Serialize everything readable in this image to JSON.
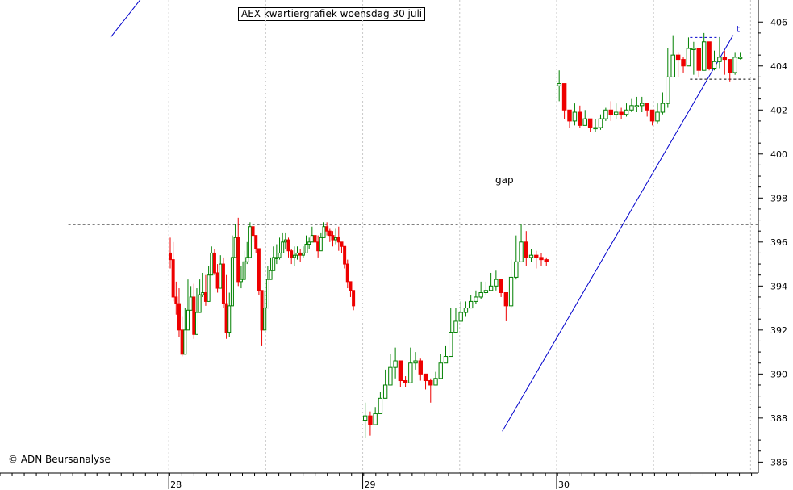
{
  "chart_data": {
    "type": "candlestick",
    "title": "AEX kwartiergrafiek woensdag 30 juli",
    "source": "© ADN Beursanalyse",
    "ylim": [
      385.5,
      407
    ],
    "y_ticks": [
      386,
      388,
      390,
      392,
      394,
      396,
      398,
      400,
      402,
      404,
      406
    ],
    "x_ticks": [
      "28",
      "29",
      "30"
    ],
    "grid": "vertical-dotted",
    "annotations": {
      "gap_label": "gap",
      "trend_label": "t"
    },
    "colors": {
      "up": "#008000",
      "down": "#ee0000",
      "trendline": "#0000cc",
      "grid": "#c8c8c8"
    },
    "levels": [
      {
        "y": 396.8,
        "x_from": 0.09,
        "x_to": 1.0
      },
      {
        "y": 401.0,
        "x_from": 0.76,
        "x_to": 1.0
      },
      {
        "y": 405.3,
        "x_from": 0.91,
        "x_to": 0.95
      },
      {
        "y": 403.4,
        "x_from": 0.91,
        "x_to": 1.0
      }
    ],
    "trendlines": [
      {
        "from": [
          1.72,
          387.4
        ],
        "to": [
          2.91,
          405.4
        ]
      },
      {
        "from": [
          -0.3,
          405.3
        ],
        "to": [
          -0.13,
          407.2
        ]
      }
    ],
    "sessions": [
      {
        "start": 0,
        "end": 0.96,
        "close": [
          395.2,
          393.5,
          393.2,
          392.0,
          390.9,
          392.0,
          392.9,
          393.5,
          391.8,
          392.8,
          393.6,
          393.7,
          393.3,
          394.5,
          395.5,
          394.6,
          393.9,
          395.0,
          393.2,
          391.9,
          393.1,
          395.3,
          396.2,
          394.2,
          394.3,
          395.1,
          395.3,
          396.7,
          396.3,
          395.7,
          393.8,
          392.0,
          393.0,
          394.3,
          394.7,
          395.3,
          395.3,
          395.5,
          396.0,
          396.1,
          395.6,
          395.3,
          395.4,
          395.5,
          395.4,
          395.5,
          395.9,
          396.0,
          396.3,
          396.0,
          395.6,
          396.2,
          396.7,
          396.5,
          396.3,
          396.1,
          396.2,
          396.0,
          395.8,
          395.0,
          394.2,
          393.8,
          393.1
        ],
        "high": [
          396.2,
          396.0,
          394.2,
          393.9,
          392.6,
          393.0,
          394.3,
          394.0,
          394.1,
          393.9,
          394.3,
          394.6,
          394.5,
          394.9,
          395.8,
          395.7,
          395.0,
          395.4,
          395.3,
          394.5,
          393.7,
          396.3,
          396.8,
          397.1,
          394.9,
          395.6,
          396.0,
          396.9,
          396.6,
          396.0,
          395.4,
          393.8,
          393.8,
          394.9,
          395.3,
          395.8,
          395.9,
          396.2,
          396.4,
          396.4,
          396.2,
          395.7,
          395.8,
          395.8,
          395.7,
          395.8,
          396.3,
          396.2,
          396.7,
          396.6,
          396.3,
          396.4,
          396.9,
          396.9,
          396.6,
          396.5,
          396.6,
          396.7,
          396.0,
          395.8,
          395.2,
          394.2,
          393.3
        ],
        "low": [
          394.8,
          393.3,
          392.7,
          391.7,
          390.8,
          391.7,
          392.5,
          392.9,
          391.6,
          392.3,
          393.3,
          393.5,
          393.1,
          394.1,
          394.5,
          394.5,
          393.7,
          394.4,
          393.0,
          391.6,
          391.7,
          393.1,
          396.0,
          394.0,
          393.9,
          394.8,
          395.0,
          396.5,
          396.0,
          395.5,
          393.6,
          391.3,
          392.6,
          394.0,
          394.4,
          395.0,
          395.0,
          395.2,
          395.8,
          395.7,
          395.3,
          395.0,
          394.9,
          395.2,
          395.1,
          395.3,
          395.6,
          395.7,
          396.0,
          395.8,
          395.3,
          395.9,
          396.5,
          396.3,
          396.0,
          395.8,
          395.9,
          395.6,
          395.5,
          394.8,
          393.9,
          393.5,
          392.9
        ]
      },
      {
        "start": 1,
        "end": 1.96,
        "close": [
          388.1,
          387.7,
          388.2,
          388.9,
          389.5,
          390.3,
          390.6,
          389.7,
          389.6,
          390.5,
          390.6,
          390.0,
          389.7,
          389.5,
          389.8,
          390.5,
          390.8,
          391.9,
          392.4,
          392.8,
          393.0,
          393.3,
          393.5,
          393.7,
          393.8,
          394.0,
          394.3,
          393.7,
          393.1,
          394.4,
          395.1,
          396.0,
          395.3,
          395.4,
          395.3,
          395.2,
          395.1
        ],
        "high": [
          388.7,
          388.3,
          388.5,
          389.2,
          390.2,
          390.9,
          391.2,
          390.6,
          389.9,
          391.2,
          391.0,
          390.7,
          390.0,
          389.8,
          390.1,
          390.9,
          391.3,
          393.0,
          393.0,
          393.3,
          393.3,
          393.6,
          393.8,
          394.2,
          394.2,
          394.6,
          394.7,
          394.2,
          393.6,
          395.2,
          396.3,
          396.8,
          396.5,
          395.7,
          395.6,
          395.5,
          395.3
        ],
        "low": [
          387.1,
          387.2,
          387.7,
          388.5,
          389.3,
          389.9,
          389.8,
          389.4,
          389.4,
          390.4,
          390.2,
          389.7,
          389.3,
          388.7,
          389.5,
          389.8,
          390.6,
          390.8,
          392.1,
          392.4,
          392.6,
          393.1,
          393.2,
          393.4,
          393.6,
          393.8,
          393.8,
          393.5,
          392.4,
          393.0,
          394.3,
          395.2,
          394.9,
          395.1,
          394.8,
          394.9,
          394.9
        ]
      },
      {
        "start": 2,
        "end": 2.96,
        "close": [
          403.2,
          402.0,
          401.5,
          401.9,
          401.3,
          401.6,
          401.2,
          401.2,
          401.6,
          402.0,
          401.8,
          401.9,
          401.8,
          402.0,
          402.2,
          402.2,
          402.3,
          402.0,
          401.5,
          401.9,
          402.3,
          403.5,
          404.5,
          404.3,
          404.0,
          404.8,
          404.8,
          403.8,
          405.1,
          403.9,
          404.2,
          404.4,
          404.3,
          403.7,
          404.4,
          404.4
        ],
        "high": [
          403.8,
          402.2,
          402.0,
          402.3,
          402.2,
          402.0,
          401.6,
          401.6,
          401.8,
          402.1,
          402.4,
          402.3,
          402.1,
          402.3,
          402.5,
          402.6,
          402.6,
          402.3,
          402.0,
          402.3,
          402.8,
          404.8,
          405.4,
          404.6,
          404.4,
          405.3,
          405.1,
          404.2,
          405.5,
          404.6,
          404.7,
          405.3,
          404.7,
          404.1,
          404.6,
          404.6
        ],
        "low": [
          402.4,
          401.6,
          401.2,
          401.3,
          401.2,
          401.3,
          401.0,
          401.0,
          401.1,
          401.5,
          401.5,
          401.6,
          401.6,
          401.7,
          401.9,
          401.9,
          401.9,
          401.7,
          401.3,
          401.4,
          401.8,
          402.1,
          403.9,
          403.5,
          403.7,
          404.1,
          403.6,
          403.5,
          403.8,
          403.8,
          403.8,
          403.9,
          403.6,
          403.3,
          403.6,
          404.3
        ]
      }
    ]
  }
}
